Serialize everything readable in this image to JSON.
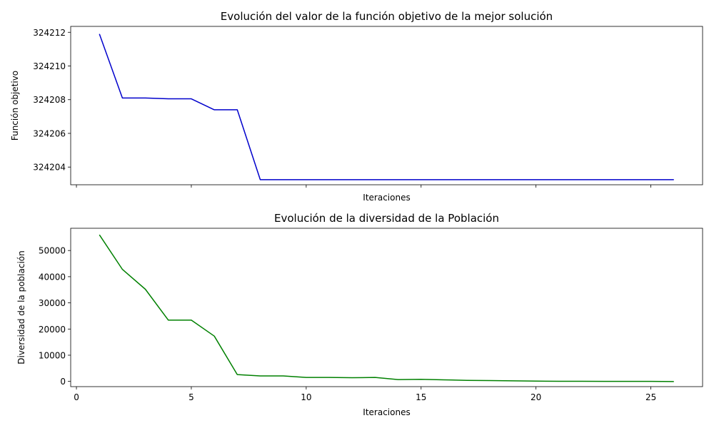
{
  "chart_data": [
    {
      "type": "line",
      "title": "Evolución del valor de la función objetivo de la mejor solución",
      "xlabel": "Iteraciones",
      "ylabel": "Función objetivo",
      "xlim": [
        -0.25,
        27.25
      ],
      "ylim": [
        324202.95,
        324212.35
      ],
      "xticks": [
        0,
        5,
        10,
        15,
        20,
        25
      ],
      "show_xtick_labels": false,
      "yticks": [
        324204,
        324206,
        324208,
        324210,
        324212
      ],
      "ytick_labels": [
        "324204",
        "324206",
        "324208",
        "324210",
        "324212"
      ],
      "grid": false,
      "color": "#0000cc",
      "series": [
        {
          "x": [
            1,
            2,
            3,
            4,
            5,
            6,
            7,
            8,
            9,
            10,
            11,
            12,
            13,
            14,
            15,
            16,
            17,
            18,
            19,
            20,
            21,
            22,
            23,
            24,
            25,
            26
          ],
          "values": [
            324211.9,
            324208.1,
            324208.1,
            324208.05,
            324208.05,
            324207.4,
            324207.4,
            324203.25,
            324203.25,
            324203.25,
            324203.25,
            324203.25,
            324203.25,
            324203.25,
            324203.25,
            324203.25,
            324203.25,
            324203.25,
            324203.25,
            324203.25,
            324203.25,
            324203.25,
            324203.25,
            324203.25,
            324203.25,
            324203.25
          ]
        }
      ]
    },
    {
      "type": "line",
      "title": "Evolución de la diversidad de la Población",
      "xlabel": "Iteraciones",
      "ylabel": "Diversidad de la población",
      "xlim": [
        -0.25,
        27.25
      ],
      "ylim": [
        -2000,
        58500
      ],
      "xticks": [
        0,
        5,
        10,
        15,
        20,
        25
      ],
      "xtick_labels": [
        "0",
        "5",
        "10",
        "15",
        "20",
        "25"
      ],
      "show_xtick_labels": true,
      "yticks": [
        0,
        10000,
        20000,
        30000,
        40000,
        50000
      ],
      "ytick_labels": [
        "0",
        "10000",
        "20000",
        "30000",
        "40000",
        "50000"
      ],
      "grid": false,
      "color": "#008000",
      "series": [
        {
          "x": [
            1,
            2,
            3,
            4,
            5,
            6,
            7,
            8,
            9,
            10,
            11,
            12,
            13,
            14,
            15,
            16,
            17,
            18,
            19,
            20,
            21,
            22,
            23,
            24,
            25,
            26
          ],
          "values": [
            56000,
            42800,
            35200,
            23400,
            23400,
            17300,
            2600,
            2100,
            2100,
            1500,
            1500,
            1400,
            1500,
            700,
            800,
            600,
            400,
            300,
            200,
            100,
            50,
            50,
            0,
            0,
            0,
            -50
          ]
        }
      ]
    }
  ]
}
